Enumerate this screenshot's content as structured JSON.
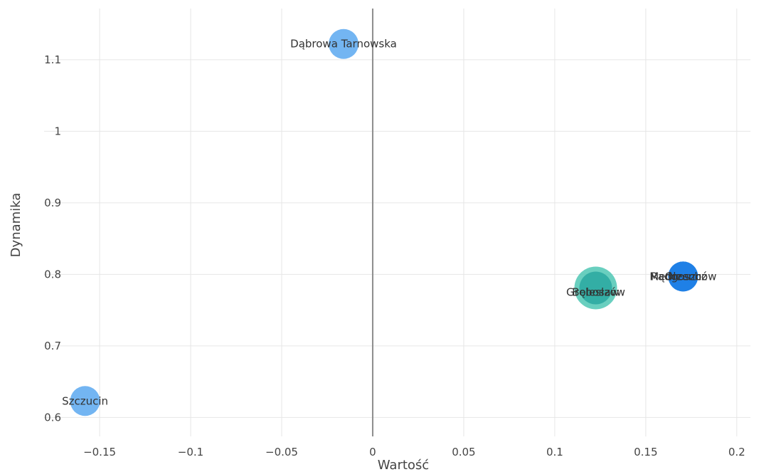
{
  "chart_data": {
    "type": "scatter",
    "xlabel": "Wartość",
    "ylabel": "Dynamika",
    "xlim": [
      -0.1805,
      0.2075
    ],
    "ylim": [
      0.5735,
      1.1715
    ],
    "x_ticks": [
      -0.15,
      -0.1,
      -0.05,
      0,
      0.05,
      0.1,
      0.15,
      0.2
    ],
    "x_tick_labels": [
      "−0.15",
      "−0.1",
      "−0.05",
      "0",
      "0.05",
      "0.1",
      "0.15",
      "0.2"
    ],
    "y_ticks": [
      0.6,
      0.7,
      0.8,
      0.9,
      1,
      1.1
    ],
    "y_tick_labels": [
      "0.6",
      "0.7",
      "0.8",
      "0.9",
      "1",
      "1.1"
    ],
    "grid": true,
    "zero_line_x": true,
    "points": [
      {
        "label": "Dąbrowa Tarnowska",
        "x": -0.016,
        "y": 1.122,
        "color": "#5aa8f0"
      },
      {
        "label": "Szczucin",
        "x": -0.158,
        "y": 0.623,
        "color": "#5aa8f0"
      },
      {
        "label": "Gręboszów",
        "x": 0.1225,
        "y": 0.781,
        "color": "#4fc7b4"
      },
      {
        "label": "Bolesław",
        "x": 0.1225,
        "y": 0.781,
        "color": "#2aa8a0"
      },
      {
        "label": "Mędrzechów",
        "x": 0.1705,
        "y": 0.797,
        "color": "#2a88e8"
      },
      {
        "label": "Radgoszcz",
        "x": 0.1705,
        "y": 0.797,
        "color": "#1f80e6"
      },
      {
        "label": "Olesno",
        "x": 0.1705,
        "y": 0.797,
        "color": "#1f7fe5"
      }
    ]
  }
}
